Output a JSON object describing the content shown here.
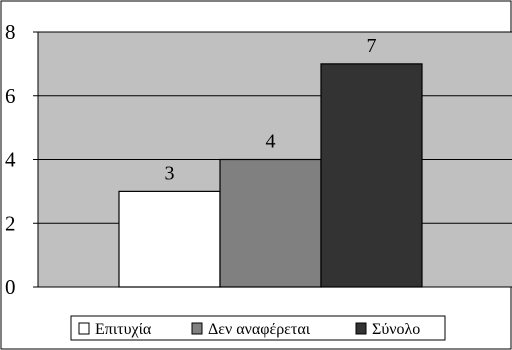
{
  "chart_data": {
    "type": "bar",
    "categories": [
      "Επιτυχία",
      "Δεν αναφέρεται",
      "Σύνολο"
    ],
    "series": [
      {
        "name": "Επιτυχία",
        "value": 3,
        "color": "#ffffff"
      },
      {
        "name": "Δεν αναφέρεται",
        "value": 4,
        "color": "#808080"
      },
      {
        "name": "Σύνολο",
        "value": 7,
        "color": "#333333"
      }
    ],
    "data_labels": [
      "3",
      "4",
      "7"
    ],
    "y_ticks": [
      "0",
      "2",
      "4",
      "6",
      "8"
    ],
    "ylim": [
      0,
      8
    ],
    "grid": true,
    "plot_background": "#c0c0c0",
    "legend_position": "bottom"
  }
}
